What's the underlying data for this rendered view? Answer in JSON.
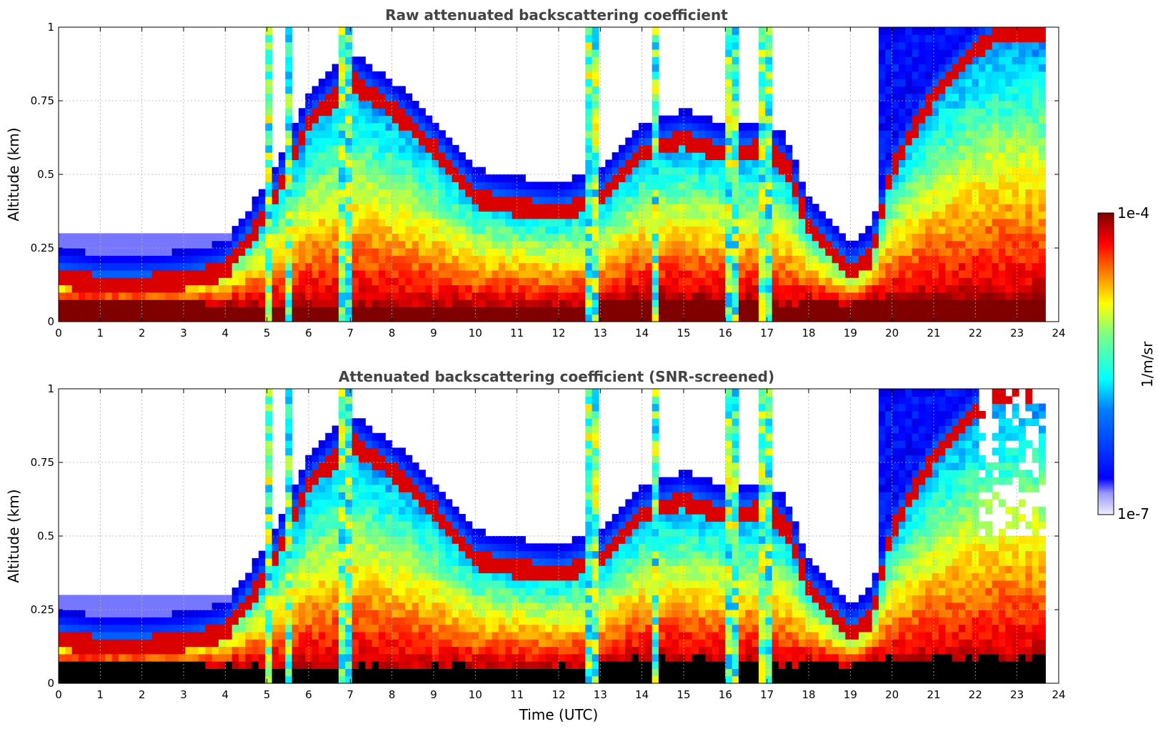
{
  "chart_data": [
    {
      "type": "heatmap",
      "title": "Raw attenuated backscattering coefficient",
      "xlabel": "",
      "ylabel": "Altitude (km)",
      "xlim": [
        0,
        24
      ],
      "ylim": [
        0,
        1
      ],
      "xticks": [
        "0",
        "1",
        "2",
        "3",
        "4",
        "5",
        "6",
        "7",
        "8",
        "9",
        "10",
        "11",
        "12",
        "13",
        "14",
        "15",
        "16",
        "17",
        "18",
        "19",
        "20",
        "21",
        "22",
        "23",
        "24"
      ],
      "yticks": [
        "0",
        "0.25",
        "0.5",
        "0.75",
        "1"
      ],
      "grid": true,
      "screened": false,
      "layers": [
        {
          "name": "surface layer",
          "x": [
            0,
            2,
            4,
            5,
            6,
            7,
            8,
            10,
            12,
            14,
            16,
            17.5,
            18,
            19,
            19.6
          ],
          "top": [
            0.07,
            0.07,
            0.06,
            0.06,
            0.05,
            0.05,
            0.05,
            0.05,
            0.05,
            0.08,
            0.08,
            0.05,
            0.07,
            0.06,
            0.08
          ]
        },
        {
          "name": "boundary layer top",
          "x": [
            0,
            1,
            2,
            3,
            4,
            5,
            6,
            7,
            7.5,
            8,
            9,
            10,
            11,
            12,
            13,
            14,
            15,
            16,
            17,
            17.5,
            18,
            18.5,
            19,
            19.5,
            20,
            21,
            22,
            22.5
          ],
          "top": [
            0.18,
            0.16,
            0.16,
            0.17,
            0.2,
            0.4,
            0.7,
            0.85,
            0.8,
            0.75,
            0.62,
            0.45,
            0.42,
            0.4,
            0.45,
            0.6,
            0.65,
            0.6,
            0.62,
            0.55,
            0.35,
            0.28,
            0.2,
            0.25,
            0.55,
            0.8,
            0.95,
            1.0
          ]
        }
      ],
      "cloud_columns_utc": [
        5.0,
        5.5,
        6.9,
        12.8,
        14.3,
        16.2,
        17.0
      ]
    },
    {
      "type": "heatmap",
      "title": "Attenuated backscattering coefficient (SNR-screened)",
      "xlabel": "Time (UTC)",
      "ylabel": "Altitude (km)",
      "xlim": [
        0,
        24
      ],
      "ylim": [
        0,
        1
      ],
      "xticks": [
        "0",
        "1",
        "2",
        "3",
        "4",
        "5",
        "6",
        "7",
        "8",
        "9",
        "10",
        "11",
        "12",
        "13",
        "14",
        "15",
        "16",
        "17",
        "18",
        "19",
        "20",
        "21",
        "22",
        "23",
        "24"
      ],
      "yticks": [
        "0",
        "0.25",
        "0.5",
        "0.75",
        "1"
      ],
      "grid": true,
      "screened": true,
      "masked_color": "#000000"
    }
  ],
  "colorbar": {
    "label": "1/m/sr",
    "max_label": "1e-4",
    "min_label": "1e-7",
    "colormap": "jet",
    "min_color": "#eeeeff",
    "max_color": "#800000"
  }
}
